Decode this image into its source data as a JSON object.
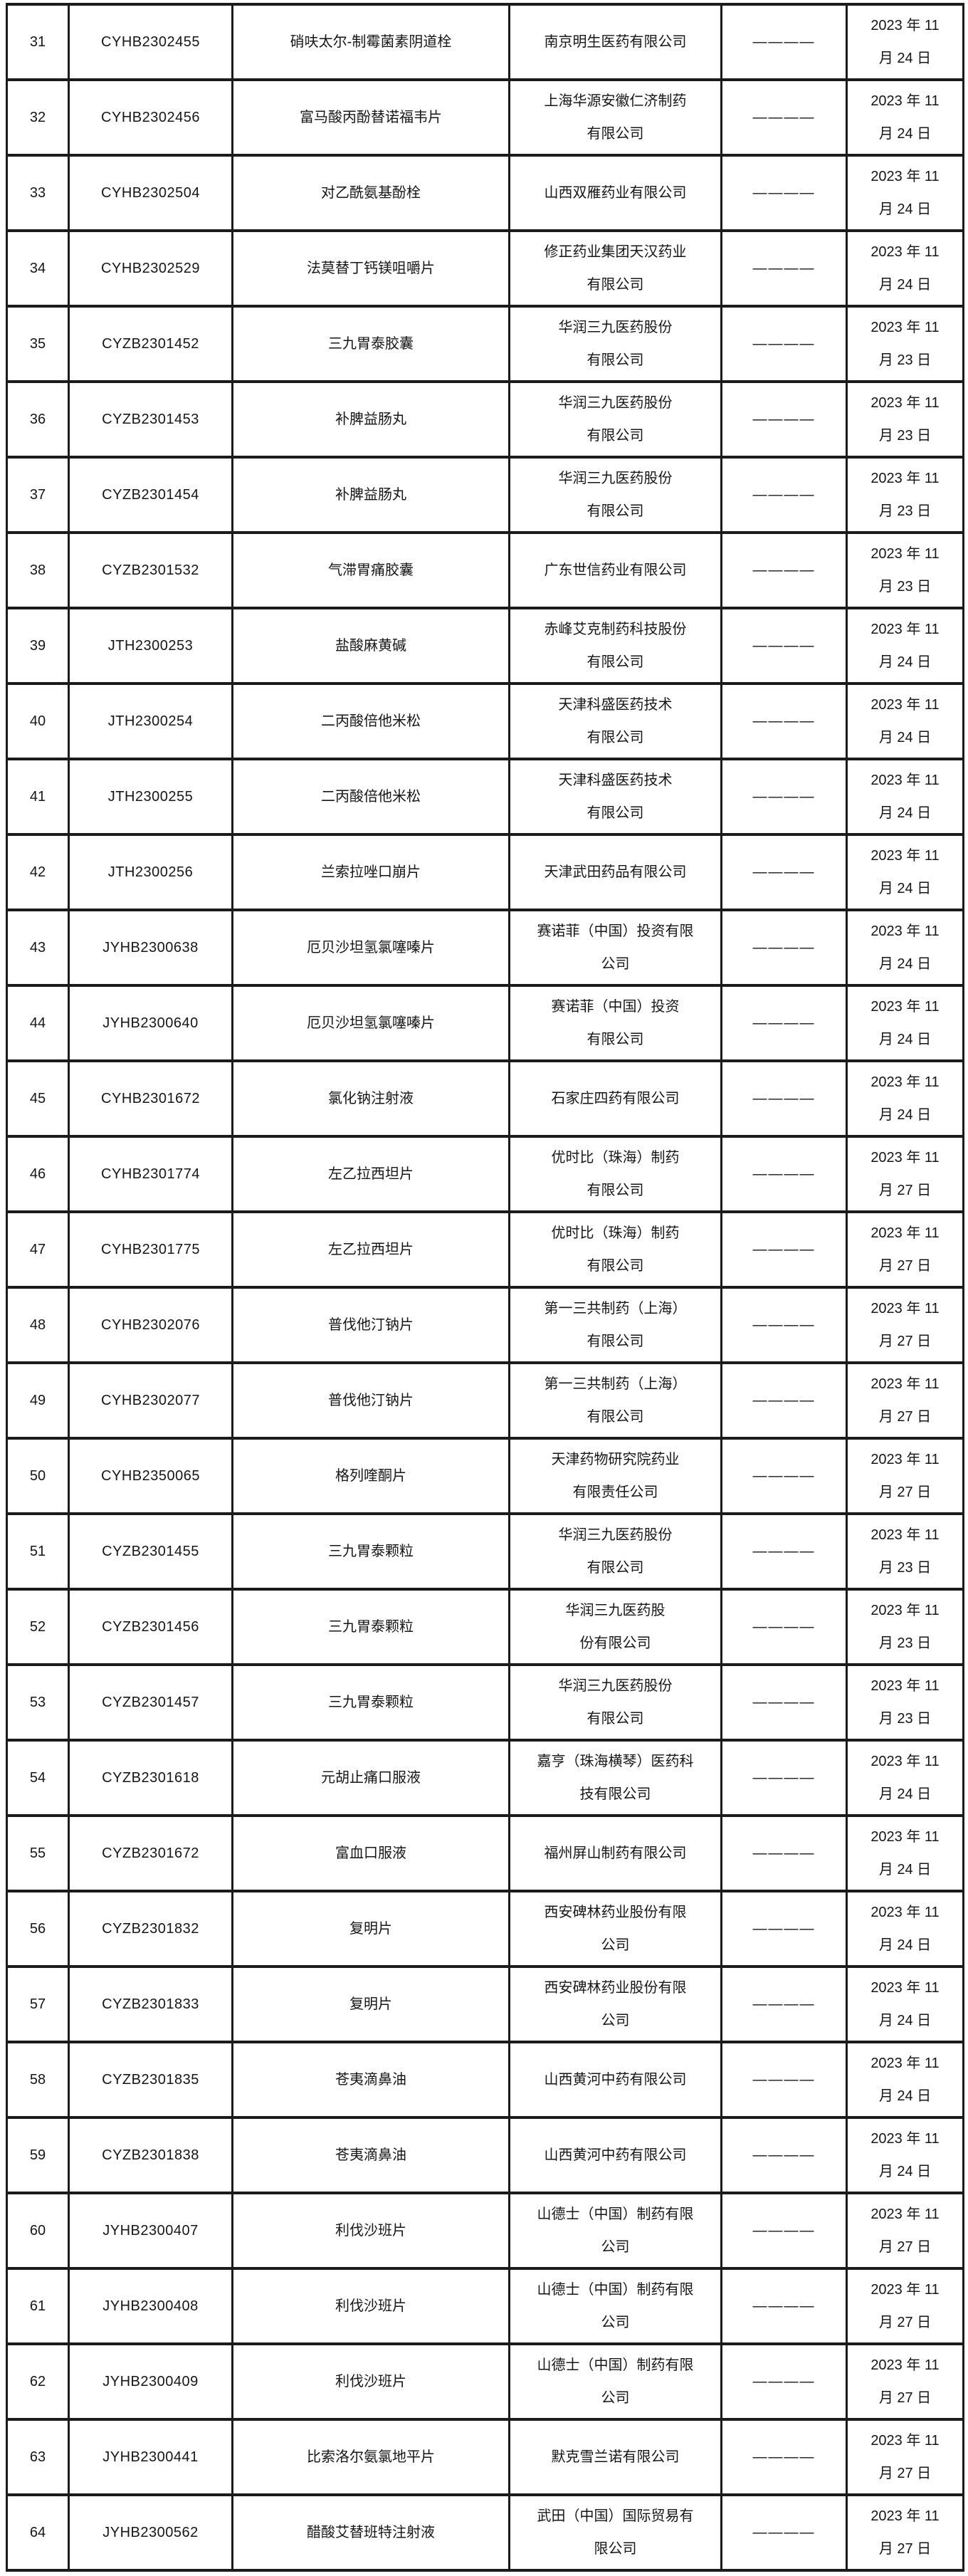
{
  "table": {
    "rows": [
      {
        "no": "31",
        "acceptance_no": "CYHB2302455",
        "drug_name": "硝呋太尔-制霉菌素阴道栓",
        "company": "南京明生医药有限公司",
        "status": "————",
        "date": "2023 年 11\n月 24 日"
      },
      {
        "no": "32",
        "acceptance_no": "CYHB2302456",
        "drug_name": "富马酸丙酚替诺福韦片",
        "company": "上海华源安徽仁济制药\n有限公司",
        "status": "————",
        "date": "2023 年 11\n月 24 日"
      },
      {
        "no": "33",
        "acceptance_no": "CYHB2302504",
        "drug_name": "对乙酰氨基酚栓",
        "company": "山西双雁药业有限公司",
        "status": "————",
        "date": "2023 年 11\n月 24 日"
      },
      {
        "no": "34",
        "acceptance_no": "CYHB2302529",
        "drug_name": "法莫替丁钙镁咀嚼片",
        "company": "修正药业集团天汉药业\n有限公司",
        "status": "————",
        "date": "2023 年 11\n月 24 日"
      },
      {
        "no": "35",
        "acceptance_no": "CYZB2301452",
        "drug_name": "三九胃泰胶囊",
        "company": "华润三九医药股份\n有限公司",
        "status": "————",
        "date": "2023 年 11\n月 23 日"
      },
      {
        "no": "36",
        "acceptance_no": "CYZB2301453",
        "drug_name": "补脾益肠丸",
        "company": "华润三九医药股份\n有限公司",
        "status": "————",
        "date": "2023 年 11\n月 23 日"
      },
      {
        "no": "37",
        "acceptance_no": "CYZB2301454",
        "drug_name": "补脾益肠丸",
        "company": "华润三九医药股份\n有限公司",
        "status": "————",
        "date": "2023 年 11\n月 23 日"
      },
      {
        "no": "38",
        "acceptance_no": "CYZB2301532",
        "drug_name": "气滞胃痛胶囊",
        "company": "广东世信药业有限公司",
        "status": "————",
        "date": "2023 年 11\n月 23 日"
      },
      {
        "no": "39",
        "acceptance_no": "JTH2300253",
        "drug_name": "盐酸麻黄碱",
        "company": "赤峰艾克制药科技股份\n有限公司",
        "status": "————",
        "date": "2023 年 11\n月 24 日"
      },
      {
        "no": "40",
        "acceptance_no": "JTH2300254",
        "drug_name": "二丙酸倍他米松",
        "company": "天津科盛医药技术\n有限公司",
        "status": "————",
        "date": "2023 年 11\n月 24 日"
      },
      {
        "no": "41",
        "acceptance_no": "JTH2300255",
        "drug_name": "二丙酸倍他米松",
        "company": "天津科盛医药技术\n有限公司",
        "status": "————",
        "date": "2023 年 11\n月 24 日"
      },
      {
        "no": "42",
        "acceptance_no": "JTH2300256",
        "drug_name": "兰索拉唑口崩片",
        "company": "天津武田药品有限公司",
        "status": "————",
        "date": "2023 年 11\n月 24 日"
      },
      {
        "no": "43",
        "acceptance_no": "JYHB2300638",
        "drug_name": "厄贝沙坦氢氯噻嗪片",
        "company": "赛诺菲（中国）投资有限\n公司",
        "status": "————",
        "date": "2023 年 11\n月 24 日"
      },
      {
        "no": "44",
        "acceptance_no": "JYHB2300640",
        "drug_name": "厄贝沙坦氢氯噻嗪片",
        "company": "赛诺菲（中国）投资\n有限公司",
        "status": "————",
        "date": "2023 年 11\n月 24 日"
      },
      {
        "no": "45",
        "acceptance_no": "CYHB2301672",
        "drug_name": "氯化钠注射液",
        "company": "石家庄四药有限公司",
        "status": "————",
        "date": "2023 年 11\n月 24 日"
      },
      {
        "no": "46",
        "acceptance_no": "CYHB2301774",
        "drug_name": "左乙拉西坦片",
        "company": "优时比（珠海）制药\n有限公司",
        "status": "————",
        "date": "2023 年 11\n月 27 日"
      },
      {
        "no": "47",
        "acceptance_no": "CYHB2301775",
        "drug_name": "左乙拉西坦片",
        "company": "优时比（珠海）制药\n有限公司",
        "status": "————",
        "date": "2023 年 11\n月 27 日"
      },
      {
        "no": "48",
        "acceptance_no": "CYHB2302076",
        "drug_name": "普伐他汀钠片",
        "company": "第一三共制药（上海）\n有限公司",
        "status": "————",
        "date": "2023 年 11\n月 27 日"
      },
      {
        "no": "49",
        "acceptance_no": "CYHB2302077",
        "drug_name": "普伐他汀钠片",
        "company": "第一三共制药（上海）\n有限公司",
        "status": "————",
        "date": "2023 年 11\n月 27 日"
      },
      {
        "no": "50",
        "acceptance_no": "CYHB2350065",
        "drug_name": "格列喹酮片",
        "company": "天津药物研究院药业\n有限责任公司",
        "status": "————",
        "date": "2023 年 11\n月 27 日"
      },
      {
        "no": "51",
        "acceptance_no": "CYZB2301455",
        "drug_name": "三九胃泰颗粒",
        "company": "华润三九医药股份\n有限公司",
        "status": "————",
        "date": "2023 年 11\n月 23 日"
      },
      {
        "no": "52",
        "acceptance_no": "CYZB2301456",
        "drug_name": "三九胃泰颗粒",
        "company": "华润三九医药股\n份有限公司",
        "status": "————",
        "date": "2023 年 11\n月 23 日"
      },
      {
        "no": "53",
        "acceptance_no": "CYZB2301457",
        "drug_name": "三九胃泰颗粒",
        "company": "华润三九医药股份\n有限公司",
        "status": "————",
        "date": "2023 年 11\n月 23 日"
      },
      {
        "no": "54",
        "acceptance_no": "CYZB2301618",
        "drug_name": "元胡止痛口服液",
        "company": "嘉亨（珠海横琴）医药科\n技有限公司",
        "status": "————",
        "date": "2023 年 11\n月 24 日"
      },
      {
        "no": "55",
        "acceptance_no": "CYZB2301672",
        "drug_name": "富血口服液",
        "company": "福州屏山制药有限公司",
        "status": "————",
        "date": "2023 年 11\n月 24 日"
      },
      {
        "no": "56",
        "acceptance_no": "CYZB2301832",
        "drug_name": "复明片",
        "company": "西安碑林药业股份有限\n公司",
        "status": "————",
        "date": "2023 年 11\n月 24 日"
      },
      {
        "no": "57",
        "acceptance_no": "CYZB2301833",
        "drug_name": "复明片",
        "company": "西安碑林药业股份有限\n公司",
        "status": "————",
        "date": "2023 年 11\n月 24 日"
      },
      {
        "no": "58",
        "acceptance_no": "CYZB2301835",
        "drug_name": "苍夷滴鼻油",
        "company": "山西黄河中药有限公司",
        "status": "————",
        "date": "2023 年 11\n月 24 日"
      },
      {
        "no": "59",
        "acceptance_no": "CYZB2301838",
        "drug_name": "苍夷滴鼻油",
        "company": "山西黄河中药有限公司",
        "status": "————",
        "date": "2023 年 11\n月 24 日"
      },
      {
        "no": "60",
        "acceptance_no": "JYHB2300407",
        "drug_name": "利伐沙班片",
        "company": "山德士（中国）制药有限\n公司",
        "status": "————",
        "date": "2023 年 11\n月 27 日"
      },
      {
        "no": "61",
        "acceptance_no": "JYHB2300408",
        "drug_name": "利伐沙班片",
        "company": "山德士（中国）制药有限\n公司",
        "status": "————",
        "date": "2023 年 11\n月 27 日"
      },
      {
        "no": "62",
        "acceptance_no": "JYHB2300409",
        "drug_name": "利伐沙班片",
        "company": "山德士（中国）制药有限\n公司",
        "status": "————",
        "date": "2023 年 11\n月 27 日"
      },
      {
        "no": "63",
        "acceptance_no": "JYHB2300441",
        "drug_name": "比索洛尔氨氯地平片",
        "company": "默克雪兰诺有限公司",
        "status": "————",
        "date": "2023 年 11\n月 27 日"
      },
      {
        "no": "64",
        "acceptance_no": "JYHB2300562",
        "drug_name": "醋酸艾替班特注射液",
        "company": "武田（中国）国际贸易有\n限公司",
        "status": "————",
        "date": "2023 年 11\n月 27 日"
      }
    ]
  }
}
